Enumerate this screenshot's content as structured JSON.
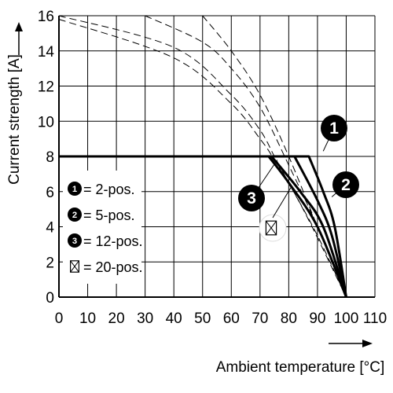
{
  "chart_data": {
    "type": "line",
    "ylabel": "Current strength [A]",
    "xlabel": "Ambient temperature [°C]",
    "xlim": [
      0,
      110
    ],
    "ylim": [
      0,
      16
    ],
    "x_ticks": [
      "0",
      "10",
      "20",
      "30",
      "40",
      "50",
      "60",
      "70",
      "80",
      "90",
      "100",
      "110"
    ],
    "y_ticks": [
      "0",
      "2",
      "4",
      "6",
      "8",
      "10",
      "12",
      "14",
      "16"
    ],
    "grid": true,
    "legend_position": "left",
    "series": [
      {
        "name": "= 2-pos.",
        "marker": "1",
        "marker_shape": "filled-circle",
        "limited": [
          [
            0,
            8
          ],
          [
            87,
            8
          ],
          [
            92,
            6
          ],
          [
            96,
            4
          ],
          [
            100,
            0
          ]
        ],
        "derating": [
          [
            0,
            16
          ],
          [
            40,
            14.2
          ],
          [
            60,
            11.5
          ],
          [
            70,
            9.5
          ],
          [
            75,
            8
          ],
          [
            80,
            6.5
          ],
          [
            90,
            3.5
          ],
          [
            100,
            0
          ]
        ]
      },
      {
        "name": "= 5-pos.",
        "marker": "2",
        "marker_shape": "filled-circle",
        "limited": [
          [
            0,
            8
          ],
          [
            82,
            8
          ],
          [
            90,
            5.5
          ],
          [
            95,
            3.5
          ],
          [
            100,
            0
          ]
        ],
        "derating": [
          [
            0,
            15.8
          ],
          [
            40,
            13.6
          ],
          [
            60,
            11
          ],
          [
            70,
            9
          ],
          [
            75,
            7.8
          ],
          [
            85,
            5
          ],
          [
            100,
            0
          ]
        ]
      },
      {
        "name": "= 12-pos.",
        "marker": "3",
        "marker_shape": "filled-circle",
        "limited": [
          [
            0,
            8
          ],
          [
            74,
            8
          ],
          [
            84,
            6
          ],
          [
            92,
            4
          ],
          [
            100,
            0
          ]
        ],
        "derating": [
          [
            30,
            16
          ],
          [
            50,
            14.5
          ],
          [
            60,
            13
          ],
          [
            70,
            10.8
          ],
          [
            80,
            7.5
          ],
          [
            90,
            4
          ],
          [
            100,
            0
          ]
        ]
      },
      {
        "name": "= 20-pos.",
        "marker": "crossed-box",
        "marker_shape": "crossed-box",
        "limited": [
          [
            0,
            8
          ],
          [
            73,
            8
          ],
          [
            80,
            6.5
          ],
          [
            90,
            4
          ],
          [
            100,
            0
          ]
        ],
        "derating": [
          [
            50,
            16
          ],
          [
            60,
            14
          ],
          [
            70,
            11.5
          ],
          [
            80,
            8
          ],
          [
            90,
            4
          ],
          [
            100,
            0
          ]
        ]
      }
    ],
    "curve_labels": [
      "1",
      "2",
      "3"
    ]
  }
}
